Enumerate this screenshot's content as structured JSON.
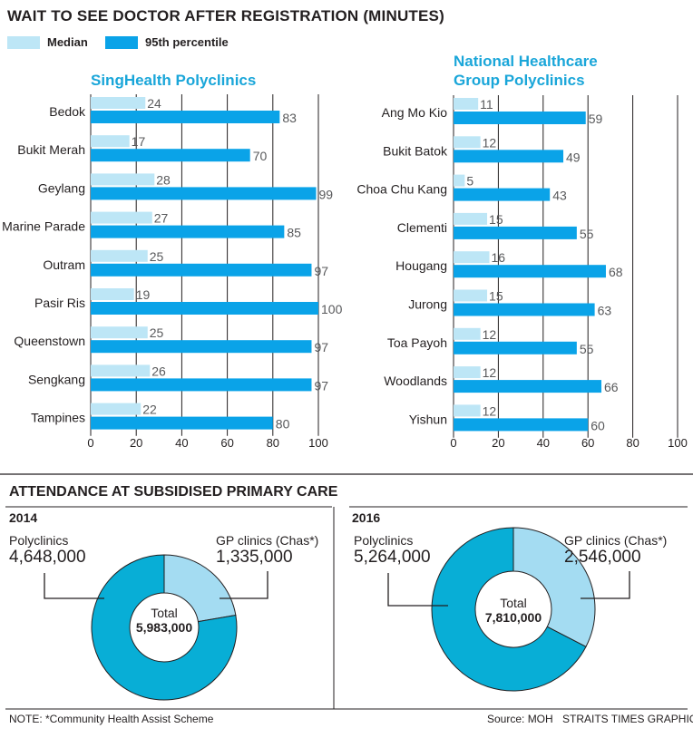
{
  "title": "WAIT TO SEE DOCTOR AFTER REGISTRATION (MINUTES)",
  "legend": {
    "median": "Median",
    "p95": "95th percentile"
  },
  "colors": {
    "median": "#bde6f6",
    "p95": "#0aa3e8",
    "donut_poly": "#08aed6",
    "donut_gp": "#a4dcf2",
    "grid": "#231f20"
  },
  "chart_data": [
    {
      "type": "bar",
      "orientation": "horizontal",
      "title": "SingHealth Polyclinics",
      "categories": [
        "Bedok",
        "Bukit Merah",
        "Geylang",
        "Marine Parade",
        "Outram",
        "Pasir Ris",
        "Queenstown",
        "Sengkang",
        "Tampines"
      ],
      "series": [
        {
          "name": "Median",
          "values": [
            24,
            17,
            28,
            27,
            25,
            19,
            25,
            26,
            22
          ]
        },
        {
          "name": "95th percentile",
          "values": [
            83,
            70,
            99,
            85,
            97,
            100,
            97,
            97,
            80
          ]
        }
      ],
      "xlim": [
        0,
        100
      ],
      "xticks": [
        "0",
        "20",
        "40",
        "60",
        "80",
        "100"
      ],
      "grid": true
    },
    {
      "type": "bar",
      "orientation": "horizontal",
      "title": "National Healthcare Group Polyclinics",
      "categories": [
        "Ang Mo Kio",
        "Bukit Batok",
        "Choa Chu Kang",
        "Clementi",
        "Hougang",
        "Jurong",
        "Toa Payoh",
        "Woodlands",
        "Yishun"
      ],
      "series": [
        {
          "name": "Median",
          "values": [
            11,
            12,
            5,
            15,
            16,
            15,
            12,
            12,
            12
          ]
        },
        {
          "name": "95th percentile",
          "values": [
            59,
            49,
            43,
            55,
            68,
            63,
            55,
            66,
            60
          ]
        }
      ],
      "xlim": [
        0,
        100
      ],
      "xticks": [
        "0",
        "20",
        "40",
        "60",
        "80",
        "100"
      ],
      "grid": true
    },
    {
      "type": "pie",
      "style": "donut",
      "year": "2014",
      "labels": [
        "Polyclinics",
        "GP clinics (Chas*)"
      ],
      "values": [
        4648000,
        1335000
      ],
      "value_labels": [
        "4,648,000",
        "1,335,000"
      ],
      "center_title": "Total",
      "center_value": "5,983,000"
    },
    {
      "type": "pie",
      "style": "donut",
      "year": "2016",
      "labels": [
        "Polyclinics",
        "GP clinics (Chas*)"
      ],
      "values": [
        5264000,
        2546000
      ],
      "value_labels": [
        "5,264,000",
        "2,546,000"
      ],
      "center_title": "Total",
      "center_value": "7,810,000"
    }
  ],
  "attendance_title": "ATTENDANCE AT SUBSIDISED PRIMARY CARE",
  "footer": {
    "note": "NOTE: *Community Health Assist Scheme",
    "source": "Source: MOH",
    "credit": "STRAITS TIMES GRAPHICS"
  }
}
